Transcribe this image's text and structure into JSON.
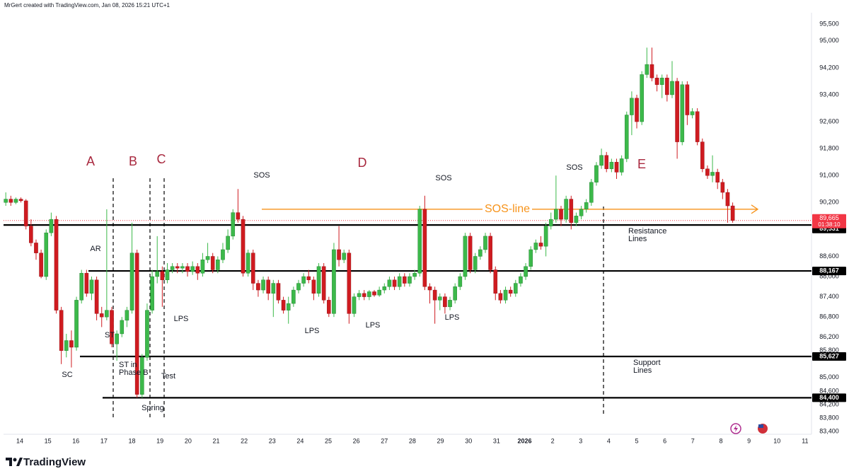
{
  "header": {
    "attribution": "MrGert created with TradingView.com, Jan 08, 2026 15:21 UTC+1"
  },
  "footer": {
    "brand": "TradingView"
  },
  "chart_data": {
    "type": "candlestick",
    "up_color": "#3cb94a",
    "down_color": "#cf1b20",
    "x": [
      -0.5,
      -0.32,
      -0.14,
      0.04,
      0.22,
      0.4,
      0.58,
      0.76,
      0.94,
      1.12,
      1.3,
      1.48,
      1.66,
      1.84,
      2.02,
      2.2,
      2.38,
      2.56,
      2.74,
      2.92,
      3.1,
      3.28,
      3.46,
      3.64,
      3.82,
      4,
      4.18,
      4.36,
      4.54,
      4.72,
      4.9,
      5.08,
      5.26,
      5.44,
      5.62,
      5.8,
      5.98,
      6.16,
      6.34,
      6.52,
      6.7,
      6.88,
      7.06,
      7.24,
      7.42,
      7.6,
      7.78,
      7.96,
      8.14,
      8.32,
      8.5,
      8.68,
      8.86,
      9.04,
      9.22,
      9.4,
      9.58,
      9.76,
      9.94,
      10.12,
      10.3,
      10.48,
      10.66,
      10.84,
      11.02,
      11.2,
      11.38,
      11.56,
      11.74,
      11.92,
      12.1,
      12.28,
      12.46,
      12.64,
      12.82,
      13,
      13.18,
      13.36,
      13.54,
      13.72,
      13.9,
      14.08,
      14.26,
      14.44,
      14.62,
      14.8,
      14.98,
      15.16,
      15.34,
      15.52,
      15.7,
      15.88,
      16.06,
      16.24,
      16.42,
      16.6,
      16.78,
      16.96,
      17.14,
      17.32,
      17.5,
      17.68,
      17.86,
      18.04,
      18.22,
      18.4,
      18.58,
      18.76,
      18.94,
      19.12,
      19.3,
      19.48,
      19.66,
      19.84,
      20.02,
      20.2,
      20.38,
      20.56,
      20.74,
      20.92,
      21.1,
      21.28,
      21.46,
      21.64,
      21.82,
      22,
      22.18,
      22.36,
      22.54,
      22.72,
      22.9,
      23.08,
      23.26,
      23.44,
      23.62,
      23.8,
      23.98,
      24.16,
      24.34,
      24.52,
      24.7,
      24.88,
      25.06,
      25.24,
      25.42
    ],
    "open": [
      90200,
      90300,
      90200,
      90300,
      90250,
      89500,
      89000,
      88700,
      88000,
      89300,
      89700,
      87000,
      85800,
      86100,
      85900,
      87300,
      88100,
      87500,
      87900,
      86900,
      86800,
      87000,
      86000,
      86300,
      86700,
      87000,
      88700,
      84500,
      85600,
      87000,
      88000,
      88150,
      87900,
      88200,
      88300,
      88250,
      88300,
      88150,
      88300,
      88100,
      88500,
      88600,
      88200,
      88500,
      88800,
      89200,
      89900,
      89700,
      88100,
      88700,
      87800,
      87600,
      87900,
      87500,
      87800,
      87300,
      87000,
      87200,
      87600,
      87800,
      88000,
      87900,
      87500,
      88300,
      87300,
      86900,
      88800,
      88500,
      88700,
      86900,
      87400,
      87500,
      87400,
      87550,
      87450,
      87600,
      87700,
      87900,
      87700,
      88000,
      87800,
      88000,
      88100,
      90000,
      87700,
      87600,
      87300,
      87400,
      87100,
      87300,
      87700,
      88000,
      89200,
      88200,
      88600,
      88800,
      89200,
      88200,
      87500,
      87300,
      87600,
      87500,
      87800,
      88000,
      88300,
      88800,
      89000,
      88900,
      89500,
      89700,
      90000,
      89700,
      90300,
      89600,
      89800,
      90000,
      90200,
      90800,
      91300,
      91600,
      91200,
      91400,
      91100,
      91500,
      92800,
      93300,
      92600,
      94000,
      94300,
      93900,
      93700,
      93900,
      93400,
      93800,
      92000,
      93700,
      92800,
      92900,
      92000,
      91200,
      91000,
      91100,
      90800,
      90500,
      90100
    ],
    "high": [
      90500,
      90400,
      90350,
      90350,
      90300,
      89700,
      89100,
      88800,
      89400,
      89900,
      89800,
      87100,
      86300,
      86400,
      87400,
      88200,
      88200,
      88000,
      88000,
      87100,
      90000,
      87100,
      86400,
      86800,
      87100,
      89600,
      88800,
      85700,
      87200,
      88200,
      89200,
      88300,
      88400,
      88400,
      88400,
      88400,
      88400,
      88450,
      88400,
      88700,
      89000,
      88700,
      88600,
      89000,
      89400,
      90000,
      90600,
      89800,
      88800,
      88800,
      87900,
      88000,
      88000,
      87900,
      87900,
      87400,
      87400,
      87700,
      87900,
      88100,
      88200,
      88000,
      88400,
      88400,
      87400,
      89000,
      89500,
      88800,
      88800,
      87500,
      87600,
      87600,
      87600,
      87600,
      87700,
      87800,
      88000,
      88000,
      88100,
      88100,
      88100,
      88200,
      90100,
      90400,
      87800,
      87700,
      87500,
      87500,
      87400,
      87800,
      88100,
      89300,
      89300,
      88700,
      88900,
      89300,
      89300,
      88300,
      87600,
      87700,
      87700,
      87900,
      88100,
      88400,
      88900,
      89100,
      89200,
      89600,
      89900,
      91000,
      90100,
      90400,
      90400,
      89900,
      90100,
      90300,
      90900,
      91400,
      91800,
      91700,
      91500,
      91500,
      91600,
      92900,
      93500,
      93400,
      94100,
      94800,
      94800,
      94000,
      94000,
      94000,
      94400,
      93900,
      93800,
      93800,
      93000,
      93000,
      92100,
      91300,
      91600,
      91200,
      90900,
      90600,
      90200
    ],
    "low": [
      90100,
      90100,
      90150,
      90200,
      89400,
      88900,
      88500,
      87950,
      87900,
      89200,
      86900,
      85400,
      85600,
      85300,
      85800,
      87200,
      87400,
      87300,
      86700,
      86500,
      86700,
      85900,
      85500,
      86200,
      86500,
      86900,
      84400,
      84400,
      85500,
      86900,
      87800,
      87100,
      87800,
      88100,
      88100,
      88100,
      88000,
      88050,
      87900,
      88000,
      88400,
      88100,
      88100,
      88400,
      88700,
      89100,
      89600,
      88000,
      88000,
      87600,
      87400,
      87500,
      87300,
      86800,
      87200,
      86900,
      86600,
      87100,
      87500,
      87700,
      87800,
      87300,
      87400,
      87200,
      86800,
      86800,
      88300,
      88400,
      86600,
      86800,
      87300,
      87300,
      87300,
      87400,
      87400,
      87500,
      87600,
      87600,
      87600,
      87700,
      87700,
      87900,
      88000,
      87600,
      87200,
      86600,
      87000,
      86900,
      87000,
      87200,
      87600,
      87900,
      88100,
      88100,
      88500,
      88700,
      88100,
      87300,
      87200,
      87200,
      87400,
      87400,
      87700,
      87900,
      88200,
      88700,
      88800,
      88600,
      89400,
      89600,
      89500,
      89600,
      89400,
      89500,
      89700,
      89900,
      90100,
      90700,
      91200,
      91100,
      91100,
      90900,
      91000,
      91400,
      92200,
      92400,
      92500,
      93900,
      93800,
      93500,
      93300,
      93200,
      93300,
      91500,
      91900,
      92500,
      92700,
      91900,
      91100,
      90900,
      90800,
      90600,
      90300,
      89600,
      89600
    ],
    "close": [
      90300,
      90200,
      90300,
      90250,
      89500,
      89000,
      88700,
      88000,
      89300,
      89700,
      87000,
      85800,
      86100,
      85900,
      87300,
      88100,
      87500,
      87900,
      86900,
      86800,
      87000,
      86000,
      86300,
      86700,
      87000,
      88700,
      84500,
      85600,
      87000,
      88000,
      88150,
      87900,
      88200,
      88300,
      88250,
      88300,
      88150,
      88300,
      88100,
      88500,
      88600,
      88200,
      88500,
      88800,
      89200,
      89900,
      89700,
      88100,
      88700,
      87800,
      87600,
      87900,
      87500,
      87800,
      87300,
      87000,
      87200,
      87600,
      87800,
      88000,
      87900,
      87500,
      88300,
      87300,
      86900,
      88800,
      88500,
      88700,
      86900,
      87400,
      87500,
      87400,
      87550,
      87450,
      87600,
      87700,
      87900,
      87700,
      88000,
      87800,
      88000,
      88100,
      90000,
      87700,
      87600,
      87300,
      87400,
      87100,
      87300,
      87700,
      88000,
      89200,
      88200,
      88600,
      88800,
      89200,
      88200,
      87500,
      87300,
      87600,
      87500,
      87800,
      88000,
      88300,
      88800,
      89000,
      88900,
      89500,
      89700,
      90000,
      89700,
      90300,
      89600,
      89800,
      90000,
      90200,
      90800,
      91300,
      91600,
      91200,
      91400,
      91100,
      91500,
      92800,
      93300,
      92600,
      94000,
      94300,
      93900,
      93700,
      93900,
      93400,
      93800,
      92000,
      93700,
      92800,
      92900,
      92000,
      91200,
      91000,
      91100,
      90800,
      90500,
      90100,
      89665
    ],
    "xlim": [
      -0.58,
      28.18
    ],
    "xticks": [
      {
        "value": 0,
        "label": "14"
      },
      {
        "value": 1,
        "label": "15"
      },
      {
        "value": 2,
        "label": "16"
      },
      {
        "value": 3,
        "label": "17"
      },
      {
        "value": 4,
        "label": "18"
      },
      {
        "value": 5,
        "label": "19"
      },
      {
        "value": 6,
        "label": "20"
      },
      {
        "value": 7,
        "label": "21"
      },
      {
        "value": 8,
        "label": "22"
      },
      {
        "value": 9,
        "label": "23"
      },
      {
        "value": 10,
        "label": "24"
      },
      {
        "value": 11,
        "label": "25"
      },
      {
        "value": 12,
        "label": "26"
      },
      {
        "value": 13,
        "label": "27"
      },
      {
        "value": 14,
        "label": "28"
      },
      {
        "value": 15,
        "label": "29"
      },
      {
        "value": 16,
        "label": "30"
      },
      {
        "value": 17,
        "label": "31"
      },
      {
        "value": 18,
        "label": "2026"
      },
      {
        "value": 19,
        "label": "2"
      },
      {
        "value": 20,
        "label": "3"
      },
      {
        "value": 21,
        "label": "4"
      },
      {
        "value": 22,
        "label": "5"
      },
      {
        "value": 23,
        "label": "6"
      },
      {
        "value": 24,
        "label": "7"
      },
      {
        "value": 25,
        "label": "8"
      },
      {
        "value": 26,
        "label": "9"
      },
      {
        "value": 27,
        "label": "10"
      },
      {
        "value": 28,
        "label": "11"
      }
    ],
    "ylim": [
      83085,
      95836
    ],
    "yticks": [
      {
        "value": 95500,
        "label": "95,500"
      },
      {
        "value": 95000,
        "label": "95,000"
      },
      {
        "value": 94200,
        "label": "94,200"
      },
      {
        "value": 93400,
        "label": "93,400"
      },
      {
        "value": 92600,
        "label": "92,600"
      },
      {
        "value": 91800,
        "label": "91,800"
      },
      {
        "value": 91000,
        "label": "91,000"
      },
      {
        "value": 90200,
        "label": "90,200"
      },
      {
        "value": 88600,
        "label": "88,600"
      },
      {
        "value": 88000,
        "label": "88,000"
      },
      {
        "value": 87400,
        "label": "87,400"
      },
      {
        "value": 86800,
        "label": "86,800"
      },
      {
        "value": 86200,
        "label": "86,200"
      },
      {
        "value": 85800,
        "label": "85,800"
      },
      {
        "value": 85000,
        "label": "85,000"
      },
      {
        "value": 84600,
        "label": "84,600"
      },
      {
        "value": 84200,
        "label": "84,200"
      },
      {
        "value": 83800,
        "label": "83,800"
      },
      {
        "value": 83400,
        "label": "83,400"
      }
    ],
    "levels": [
      {
        "value": 89531,
        "label": "89,531"
      },
      {
        "value": 88167,
        "label": "88,167"
      },
      {
        "value": 85627,
        "label": "85,627"
      },
      {
        "value": 84400,
        "label": "84,400"
      }
    ],
    "last_price": {
      "value": 89665,
      "label": "89,665",
      "countdown": "01:38:10",
      "color": "#f23645"
    },
    "sos_line": {
      "value": 90000,
      "label": "SOS-line",
      "color": "#f7931a"
    },
    "phases": [
      "A",
      "B",
      "C",
      "D",
      "E"
    ],
    "events": [
      {
        "lines": [
          "SOS"
        ]
      },
      {
        "lines": [
          "SOS"
        ]
      },
      {
        "lines": [
          "SOS"
        ]
      },
      {
        "lines": [
          "AR"
        ]
      },
      {
        "lines": [
          "SC"
        ]
      },
      {
        "lines": [
          "ST"
        ]
      },
      {
        "lines": [
          "ST in",
          "Phase B"
        ]
      },
      {
        "lines": [
          "Test"
        ]
      },
      {
        "lines": [
          "Spring"
        ]
      },
      {
        "lines": [
          "LPS"
        ]
      },
      {
        "lines": [
          "LPS"
        ]
      },
      {
        "lines": [
          "LPS"
        ]
      },
      {
        "lines": [
          "LPS"
        ]
      },
      {
        "lines": [
          "Resistance",
          "Lines"
        ]
      },
      {
        "lines": [
          "Support",
          "Lines"
        ]
      }
    ]
  }
}
